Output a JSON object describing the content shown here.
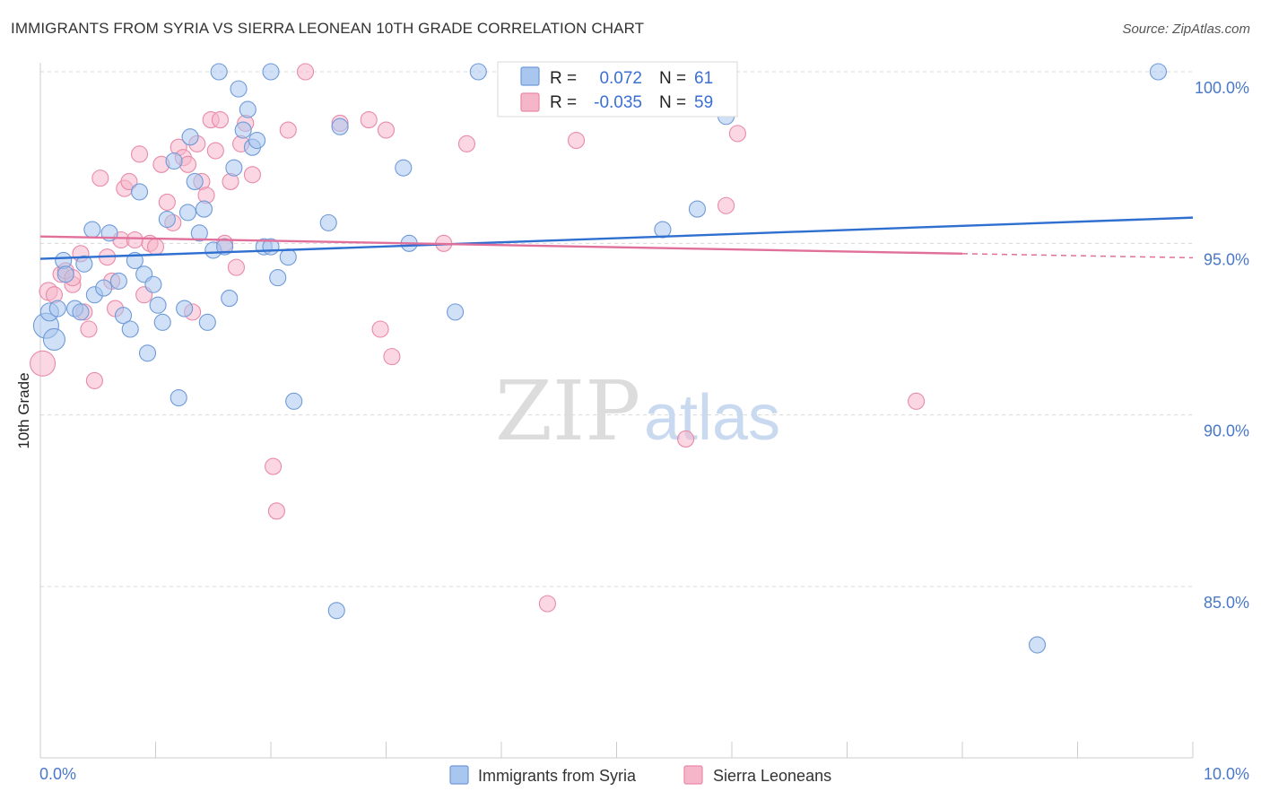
{
  "title": "IMMIGRANTS FROM SYRIA VS SIERRA LEONEAN 10TH GRADE CORRELATION CHART",
  "source": "Source: ZipAtlas.com",
  "watermark": {
    "zip": "ZIP",
    "atlas": "atlas"
  },
  "colors": {
    "syria_fill": "#a9c6ef",
    "syria_stroke": "#6f9ad8",
    "syria_line": "#2f6fd0",
    "sierra_fill": "#f5b6ca",
    "sierra_stroke": "#e98aa8",
    "sierra_line": "#e0709a",
    "grid": "#d8d8d8",
    "axis_label": "#4a78c8"
  },
  "stats": {
    "r_label": "R =",
    "n_label": "N =",
    "syria": {
      "r": "0.072",
      "n": "61"
    },
    "sierra": {
      "r": "-0.035",
      "n": "59"
    }
  },
  "legend_bottom": [
    "Immigrants from Syria",
    "Sierra Leoneans"
  ],
  "chart_data": {
    "type": "scatter",
    "title": "IMMIGRANTS FROM SYRIA VS SIERRA LEONEAN 10TH GRADE CORRELATION CHART",
    "xlabel": "",
    "ylabel": "10th Grade",
    "xlim": [
      0,
      10
    ],
    "ylim": [
      80.5,
      100.6
    ],
    "x_tick_labels": [
      "0.0%",
      "10.0%"
    ],
    "y_tick_labels": [
      "85.0%",
      "90.0%",
      "95.0%",
      "100.0%"
    ],
    "y_ticks": [
      85,
      90,
      95,
      100
    ],
    "grid": true,
    "legend_position": "top-center",
    "series": [
      {
        "name": "Immigrants from Syria",
        "trend": {
          "x": [
            0,
            10
          ],
          "y": [
            94.55,
            95.75
          ]
        },
        "points": [
          [
            0.05,
            92.6,
            14
          ],
          [
            0.08,
            93.0,
            10
          ],
          [
            0.12,
            92.2,
            12
          ],
          [
            0.15,
            93.1,
            9
          ],
          [
            0.2,
            94.5,
            9
          ],
          [
            0.22,
            94.1,
            9
          ],
          [
            0.3,
            93.1,
            9
          ],
          [
            0.35,
            93.0,
            9
          ],
          [
            0.38,
            94.4,
            9
          ],
          [
            0.45,
            95.4,
            9
          ],
          [
            0.47,
            93.5,
            9
          ],
          [
            0.55,
            93.7,
            9
          ],
          [
            0.6,
            95.3,
            9
          ],
          [
            0.68,
            93.9,
            9
          ],
          [
            0.72,
            92.9,
            9
          ],
          [
            0.78,
            92.5,
            9
          ],
          [
            0.82,
            94.5,
            9
          ],
          [
            0.86,
            96.5,
            9
          ],
          [
            0.9,
            94.1,
            9
          ],
          [
            0.93,
            91.8,
            9
          ],
          [
            0.98,
            93.8,
            9
          ],
          [
            1.02,
            93.2,
            9
          ],
          [
            1.06,
            92.7,
            9
          ],
          [
            1.1,
            95.7,
            9
          ],
          [
            1.16,
            97.4,
            9
          ],
          [
            1.2,
            90.5,
            9
          ],
          [
            1.25,
            93.1,
            9
          ],
          [
            1.3,
            98.1,
            9
          ],
          [
            1.34,
            96.8,
            9
          ],
          [
            1.38,
            95.3,
            9
          ],
          [
            1.42,
            96.0,
            9
          ],
          [
            1.45,
            92.7,
            9
          ],
          [
            1.5,
            94.8,
            9
          ],
          [
            1.55,
            100.0,
            9
          ],
          [
            1.6,
            94.9,
            9
          ],
          [
            1.64,
            93.4,
            9
          ],
          [
            1.68,
            97.2,
            9
          ],
          [
            1.72,
            99.5,
            9
          ],
          [
            1.76,
            98.3,
            9
          ],
          [
            1.8,
            98.9,
            9
          ],
          [
            1.84,
            97.8,
            9
          ],
          [
            1.88,
            98.0,
            9
          ],
          [
            1.94,
            94.9,
            9
          ],
          [
            2.0,
            100.0,
            9
          ],
          [
            2.06,
            94.0,
            9
          ],
          [
            2.15,
            94.6,
            9
          ],
          [
            2.2,
            90.4,
            9
          ],
          [
            2.5,
            95.6,
            9
          ],
          [
            2.6,
            98.4,
            9
          ],
          [
            3.15,
            97.2,
            9
          ],
          [
            3.2,
            95.0,
            9
          ],
          [
            3.6,
            93.0,
            9
          ],
          [
            3.8,
            100.0,
            9
          ],
          [
            5.4,
            95.4,
            9
          ],
          [
            5.7,
            96.0,
            9
          ],
          [
            5.95,
            98.7,
            9
          ],
          [
            2.57,
            84.3,
            9
          ],
          [
            8.65,
            83.3,
            9
          ],
          [
            9.7,
            100.0,
            9
          ],
          [
            2.0,
            94.9,
            9
          ],
          [
            1.28,
            95.9,
            9
          ]
        ]
      },
      {
        "name": "Sierra Leoneans",
        "trend": {
          "x": [
            0,
            8.0
          ],
          "y": [
            95.2,
            94.7
          ]
        },
        "trend_dashed": {
          "x": [
            8.0,
            10
          ],
          "y": [
            94.7,
            94.58
          ]
        },
        "points": [
          [
            0.02,
            91.5,
            14
          ],
          [
            0.07,
            93.6,
            10
          ],
          [
            0.12,
            93.5,
            9
          ],
          [
            0.18,
            94.1,
            9
          ],
          [
            0.22,
            94.2,
            9
          ],
          [
            0.28,
            93.8,
            9
          ],
          [
            0.35,
            94.7,
            9
          ],
          [
            0.38,
            93.0,
            9
          ],
          [
            0.42,
            92.5,
            9
          ],
          [
            0.47,
            91.0,
            9
          ],
          [
            0.52,
            96.9,
            9
          ],
          [
            0.58,
            94.6,
            9
          ],
          [
            0.62,
            93.9,
            9
          ],
          [
            0.65,
            93.1,
            9
          ],
          [
            0.7,
            95.1,
            9
          ],
          [
            0.73,
            96.6,
            9
          ],
          [
            0.77,
            96.8,
            9
          ],
          [
            0.82,
            95.1,
            9
          ],
          [
            0.86,
            97.6,
            9
          ],
          [
            0.9,
            93.5,
            9
          ],
          [
            0.95,
            95.0,
            9
          ],
          [
            1.0,
            94.9,
            9
          ],
          [
            1.05,
            97.3,
            9
          ],
          [
            1.1,
            96.2,
            9
          ],
          [
            1.15,
            95.6,
            9
          ],
          [
            1.2,
            97.8,
            9
          ],
          [
            1.24,
            97.5,
            9
          ],
          [
            1.28,
            97.3,
            9
          ],
          [
            1.32,
            93.0,
            9
          ],
          [
            1.36,
            97.9,
            9
          ],
          [
            1.4,
            96.8,
            9
          ],
          [
            1.44,
            96.4,
            9
          ],
          [
            1.48,
            98.6,
            9
          ],
          [
            1.52,
            97.7,
            9
          ],
          [
            1.56,
            98.6,
            9
          ],
          [
            1.6,
            95.0,
            9
          ],
          [
            1.65,
            96.8,
            9
          ],
          [
            1.7,
            94.3,
            9
          ],
          [
            1.74,
            97.9,
            9
          ],
          [
            1.78,
            98.5,
            9
          ],
          [
            1.84,
            97.0,
            9
          ],
          [
            2.02,
            88.5,
            9
          ],
          [
            2.05,
            87.2,
            9
          ],
          [
            2.15,
            98.3,
            9
          ],
          [
            2.3,
            100.0,
            9
          ],
          [
            2.6,
            98.5,
            9
          ],
          [
            2.85,
            98.6,
            9
          ],
          [
            2.95,
            92.5,
            9
          ],
          [
            3.0,
            98.3,
            9
          ],
          [
            3.05,
            91.7,
            9
          ],
          [
            3.5,
            95.0,
            9
          ],
          [
            3.7,
            97.9,
            9
          ],
          [
            4.4,
            84.5,
            9
          ],
          [
            4.65,
            98.0,
            9
          ],
          [
            5.6,
            89.3,
            9
          ],
          [
            5.95,
            96.1,
            9
          ],
          [
            6.05,
            98.2,
            9
          ],
          [
            7.6,
            90.4,
            9
          ],
          [
            0.28,
            94.0,
            9
          ]
        ]
      }
    ]
  }
}
